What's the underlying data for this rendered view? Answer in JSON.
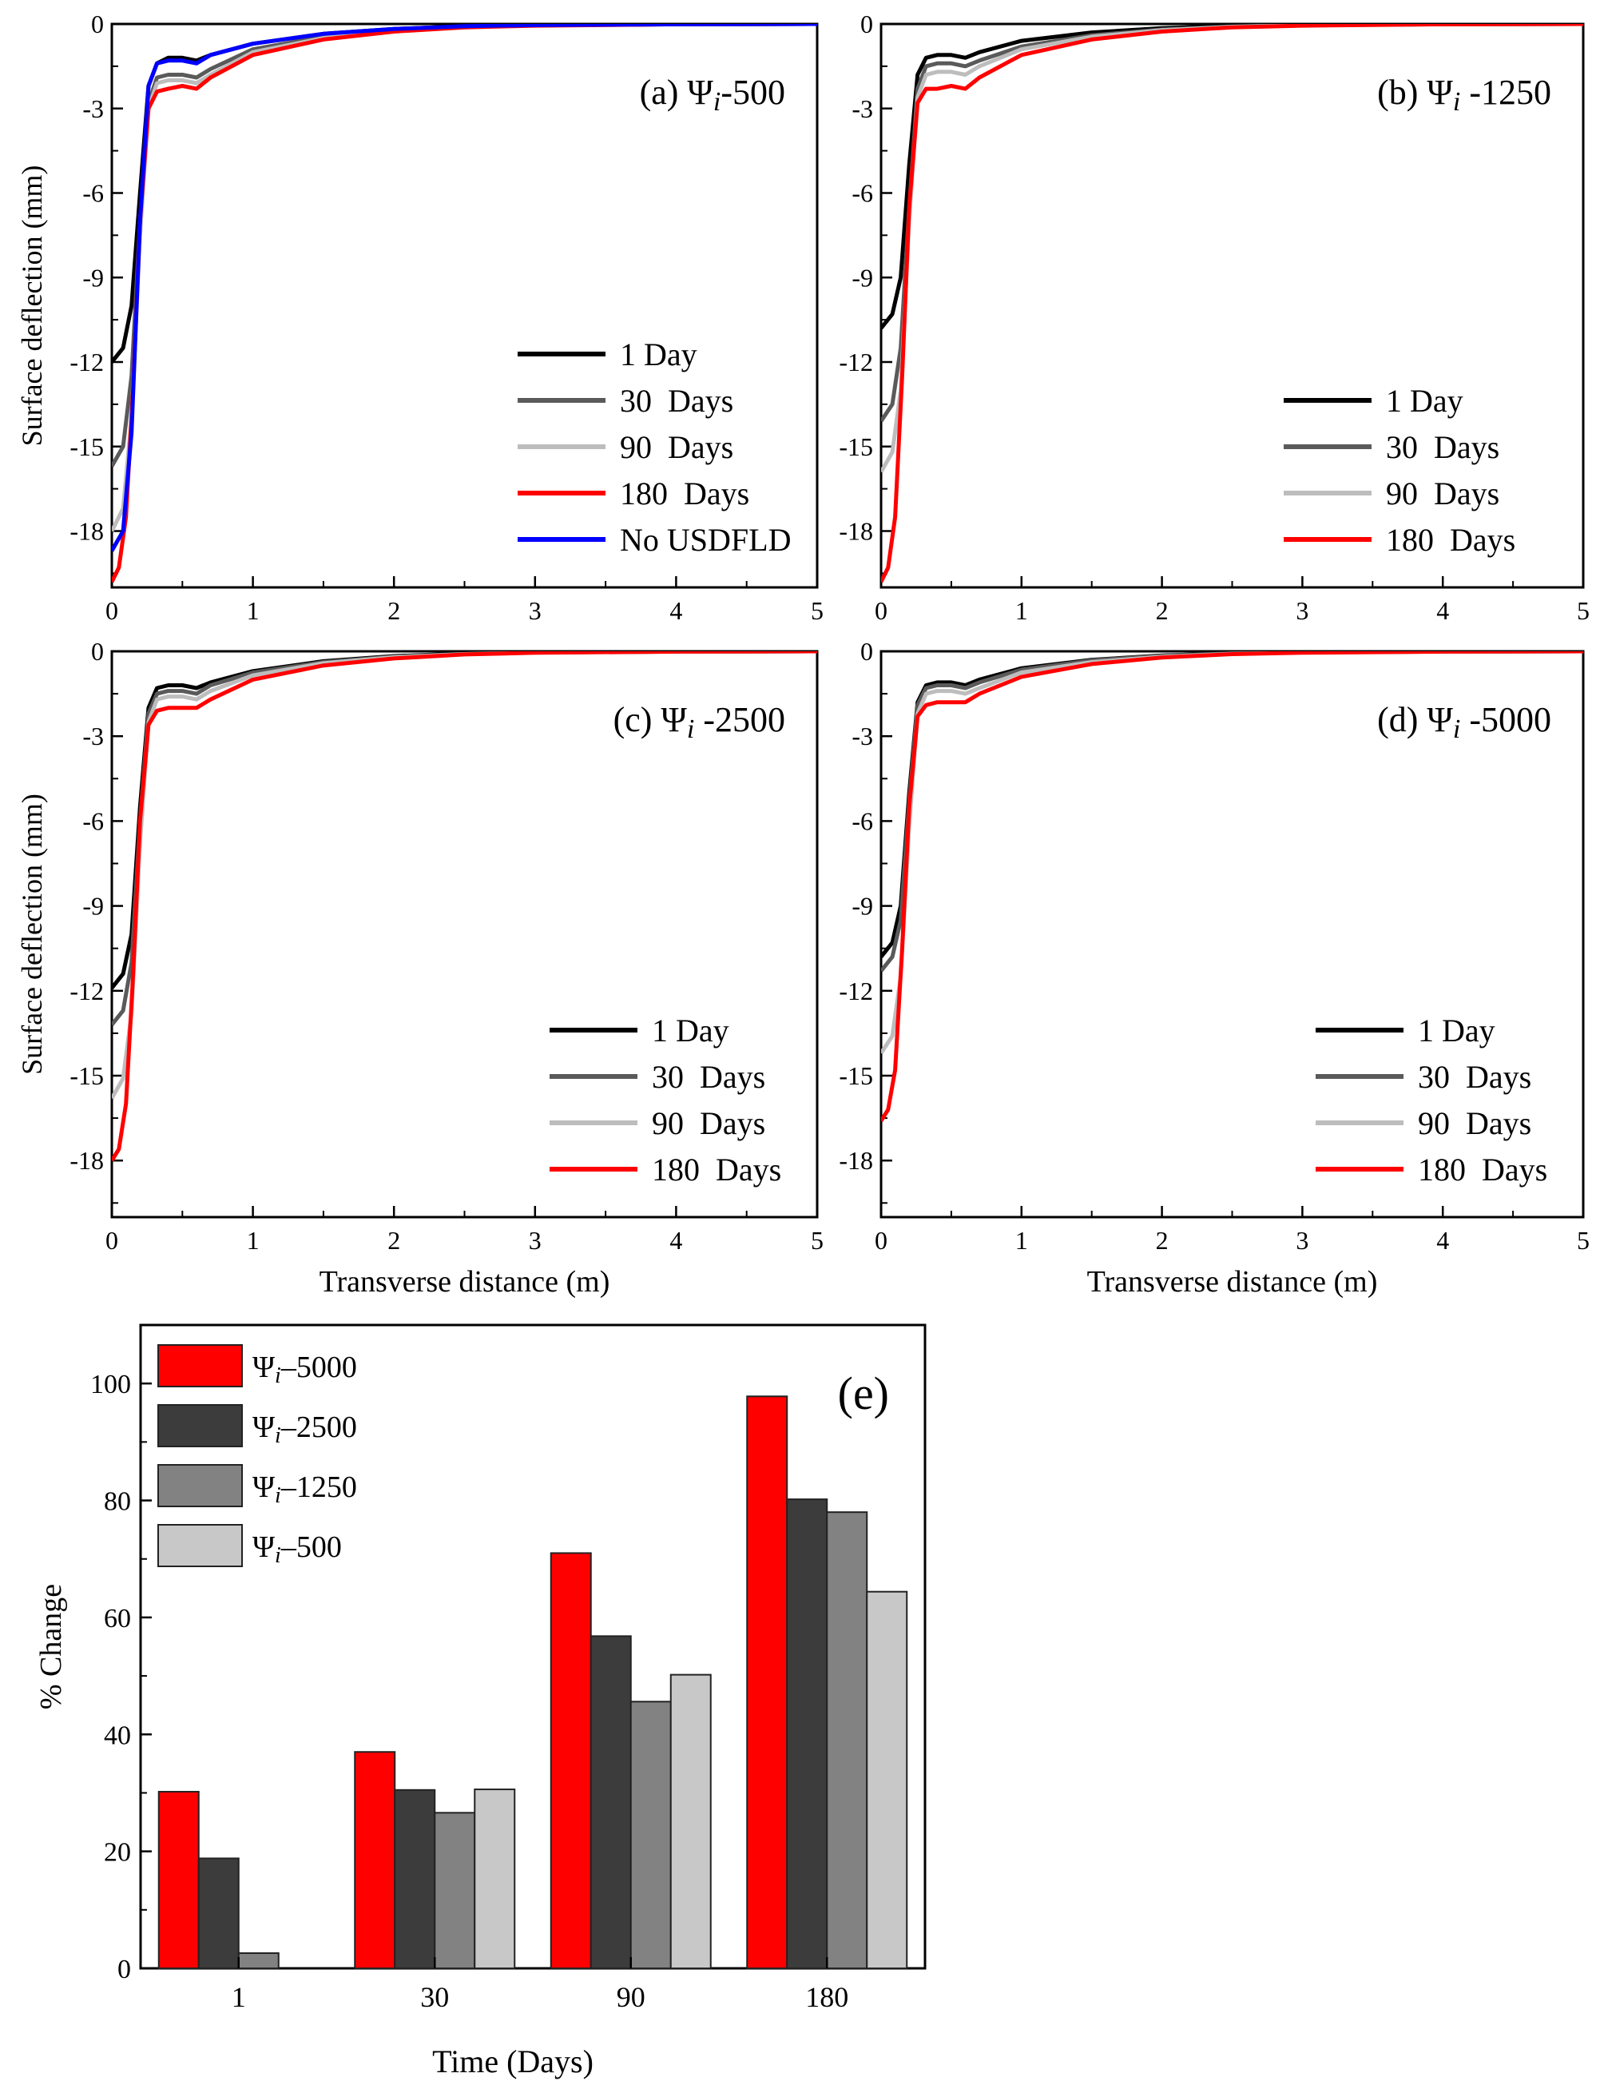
{
  "colors": {
    "black": "#000000",
    "dark_gray": "#5a5a5a",
    "light_gray": "#bdbdbd",
    "red": "#ff0000",
    "blue": "#0000ff",
    "bar_red": "#ff0000",
    "bar_dark": "#3c3c3c",
    "bar_mid": "#828282",
    "bar_light": "#c8c8c8"
  },
  "chart_data": [
    {
      "id": "a",
      "type": "line",
      "label": "(a) Ψ",
      "label_sub": "i",
      "label_value": "-500",
      "ylabel": "Surface deflection (mm)",
      "xlabel": "",
      "xlim": [
        0,
        5
      ],
      "ylim": [
        -20,
        0
      ],
      "xticks": [
        "0",
        "1",
        "2",
        "3",
        "4",
        "5"
      ],
      "yticks": [
        "0",
        "-3",
        "-6",
        "-9",
        "-12",
        "-15",
        "-18"
      ],
      "legend_position": "bottom-right",
      "series": [
        {
          "name": "1 Day",
          "color": "#000000",
          "x": [
            0,
            0.08,
            0.14,
            0.2,
            0.26,
            0.32,
            0.4,
            0.5,
            0.6,
            0.7,
            1.0,
            1.5,
            2.0,
            2.5,
            3.0,
            4.0,
            5.0
          ],
          "y": [
            -12.0,
            -11.5,
            -10.0,
            -6.0,
            -2.2,
            -1.4,
            -1.2,
            -1.2,
            -1.3,
            -1.1,
            -0.7,
            -0.35,
            -0.18,
            -0.08,
            -0.04,
            -0.01,
            0
          ]
        },
        {
          "name": "30  Days",
          "color": "#5a5a5a",
          "x": [
            0,
            0.08,
            0.14,
            0.2,
            0.26,
            0.32,
            0.4,
            0.5,
            0.6,
            0.7,
            1.0,
            1.5,
            2.0,
            2.5,
            3.0,
            4.0,
            5.0
          ],
          "y": [
            -15.7,
            -15.0,
            -12.5,
            -7.0,
            -2.8,
            -1.9,
            -1.8,
            -1.8,
            -1.9,
            -1.6,
            -0.9,
            -0.45,
            -0.22,
            -0.1,
            -0.05,
            -0.01,
            0
          ]
        },
        {
          "name": "90  Days",
          "color": "#bdbdbd",
          "x": [
            0,
            0.08,
            0.14,
            0.2,
            0.26,
            0.32,
            0.4,
            0.5,
            0.6,
            0.7,
            1.0,
            1.5,
            2.0,
            2.5,
            3.0,
            4.0,
            5.0
          ],
          "y": [
            -18.0,
            -17.2,
            -14.0,
            -7.5,
            -3.0,
            -2.1,
            -2.0,
            -2.0,
            -2.1,
            -1.8,
            -1.0,
            -0.5,
            -0.24,
            -0.11,
            -0.05,
            -0.01,
            0
          ]
        },
        {
          "name": "180  Days",
          "color": "#ff0000",
          "x": [
            0,
            0.05,
            0.1,
            0.15,
            0.2,
            0.26,
            0.32,
            0.4,
            0.5,
            0.6,
            0.7,
            1.0,
            1.5,
            2.0,
            2.5,
            3.0,
            4.0,
            5.0
          ],
          "y": [
            -19.8,
            -19.3,
            -17.5,
            -13.0,
            -7.0,
            -3.0,
            -2.4,
            -2.3,
            -2.2,
            -2.3,
            -1.9,
            -1.1,
            -0.55,
            -0.27,
            -0.12,
            -0.06,
            -0.01,
            0
          ]
        },
        {
          "name": "No USDFLD",
          "color": "#0000ff",
          "x": [
            0,
            0.08,
            0.14,
            0.2,
            0.26,
            0.32,
            0.4,
            0.5,
            0.6,
            0.7,
            1.0,
            1.5,
            2.0,
            2.5,
            3.0,
            4.0,
            5.0
          ],
          "y": [
            -18.7,
            -18.0,
            -14.5,
            -7.0,
            -2.2,
            -1.4,
            -1.3,
            -1.3,
            -1.4,
            -1.1,
            -0.7,
            -0.35,
            -0.18,
            -0.08,
            -0.04,
            -0.01,
            0
          ]
        }
      ]
    },
    {
      "id": "b",
      "type": "line",
      "label": "(b) Ψ",
      "label_sub": "i",
      "label_value": " -1250",
      "ylabel": "",
      "xlabel": "",
      "xlim": [
        0,
        5
      ],
      "ylim": [
        -20,
        0
      ],
      "xticks": [
        "0",
        "1",
        "2",
        "3",
        "4",
        "5"
      ],
      "yticks": [
        "0",
        "-3",
        "-6",
        "-9",
        "-12",
        "-15",
        "-18"
      ],
      "legend_position": "bottom-right",
      "series": [
        {
          "name": "1 Day",
          "color": "#000000",
          "x": [
            0,
            0.08,
            0.14,
            0.2,
            0.26,
            0.32,
            0.4,
            0.5,
            0.6,
            0.7,
            1.0,
            1.5,
            2.0,
            2.5,
            3.0,
            4.0,
            5.0
          ],
          "y": [
            -10.8,
            -10.3,
            -9.0,
            -5.0,
            -1.8,
            -1.2,
            -1.1,
            -1.1,
            -1.2,
            -1.0,
            -0.6,
            -0.3,
            -0.15,
            -0.07,
            -0.03,
            -0.01,
            0
          ]
        },
        {
          "name": "30  Days",
          "color": "#5a5a5a",
          "x": [
            0,
            0.08,
            0.14,
            0.2,
            0.26,
            0.32,
            0.4,
            0.5,
            0.6,
            0.7,
            1.0,
            1.5,
            2.0,
            2.5,
            3.0,
            4.0,
            5.0
          ],
          "y": [
            -14.1,
            -13.5,
            -11.5,
            -6.5,
            -2.3,
            -1.5,
            -1.4,
            -1.4,
            -1.5,
            -1.3,
            -0.8,
            -0.4,
            -0.2,
            -0.09,
            -0.04,
            -0.01,
            0
          ]
        },
        {
          "name": "90  Days",
          "color": "#bdbdbd",
          "x": [
            0,
            0.08,
            0.14,
            0.2,
            0.26,
            0.32,
            0.4,
            0.5,
            0.6,
            0.7,
            1.0,
            1.5,
            2.0,
            2.5,
            3.0,
            4.0,
            5.0
          ],
          "y": [
            -15.9,
            -15.2,
            -13.0,
            -7.0,
            -2.6,
            -1.8,
            -1.7,
            -1.7,
            -1.8,
            -1.5,
            -0.9,
            -0.45,
            -0.22,
            -0.1,
            -0.05,
            -0.01,
            0
          ]
        },
        {
          "name": "180  Days",
          "color": "#ff0000",
          "x": [
            0,
            0.05,
            0.1,
            0.15,
            0.2,
            0.26,
            0.32,
            0.4,
            0.5,
            0.6,
            0.7,
            1.0,
            1.5,
            2.0,
            2.5,
            3.0,
            4.0,
            5.0
          ],
          "y": [
            -19.8,
            -19.3,
            -17.5,
            -12.5,
            -6.5,
            -2.8,
            -2.3,
            -2.3,
            -2.2,
            -2.3,
            -1.9,
            -1.1,
            -0.55,
            -0.27,
            -0.12,
            -0.06,
            -0.01,
            0
          ]
        }
      ]
    },
    {
      "id": "c",
      "type": "line",
      "label": "(c) Ψ",
      "label_sub": "i",
      "label_value": " -2500",
      "ylabel": "Surface deflection (mm)",
      "xlabel": "Transverse distance (m)",
      "xlim": [
        0,
        5
      ],
      "ylim": [
        -20,
        0
      ],
      "xticks": [
        "0",
        "1",
        "2",
        "3",
        "4",
        "5"
      ],
      "yticks": [
        "0",
        "-3",
        "-6",
        "-9",
        "-12",
        "-15",
        "-18"
      ],
      "legend_position": "bottom-right",
      "series": [
        {
          "name": "1 Day",
          "color": "#000000",
          "x": [
            0,
            0.08,
            0.14,
            0.2,
            0.26,
            0.32,
            0.4,
            0.5,
            0.6,
            0.7,
            1.0,
            1.5,
            2.0,
            2.5,
            3.0,
            4.0,
            5.0
          ],
          "y": [
            -11.9,
            -11.4,
            -10.0,
            -5.5,
            -2.0,
            -1.3,
            -1.2,
            -1.2,
            -1.3,
            -1.1,
            -0.7,
            -0.35,
            -0.17,
            -0.08,
            -0.04,
            -0.01,
            0
          ]
        },
        {
          "name": "30  Days",
          "color": "#5a5a5a",
          "x": [
            0,
            0.08,
            0.14,
            0.2,
            0.26,
            0.32,
            0.4,
            0.5,
            0.6,
            0.7,
            1.0,
            1.5,
            2.0,
            2.5,
            3.0,
            4.0,
            5.0
          ],
          "y": [
            -13.2,
            -12.7,
            -11.0,
            -6.0,
            -2.2,
            -1.5,
            -1.4,
            -1.4,
            -1.5,
            -1.2,
            -0.75,
            -0.38,
            -0.19,
            -0.09,
            -0.04,
            -0.01,
            0
          ]
        },
        {
          "name": "90  Days",
          "color": "#bdbdbd",
          "x": [
            0,
            0.08,
            0.14,
            0.2,
            0.26,
            0.32,
            0.4,
            0.5,
            0.6,
            0.7,
            1.0,
            1.5,
            2.0,
            2.5,
            3.0,
            4.0,
            5.0
          ],
          "y": [
            -15.8,
            -15.1,
            -12.8,
            -6.8,
            -2.5,
            -1.7,
            -1.6,
            -1.6,
            -1.7,
            -1.4,
            -0.85,
            -0.42,
            -0.21,
            -0.1,
            -0.05,
            -0.01,
            0
          ]
        },
        {
          "name": "180  Days",
          "color": "#ff0000",
          "x": [
            0,
            0.05,
            0.1,
            0.15,
            0.2,
            0.26,
            0.32,
            0.4,
            0.5,
            0.6,
            0.7,
            1.0,
            1.5,
            2.0,
            2.5,
            3.0,
            4.0,
            5.0
          ],
          "y": [
            -18.0,
            -17.6,
            -16.0,
            -11.5,
            -6.0,
            -2.6,
            -2.1,
            -2.0,
            -2.0,
            -2.0,
            -1.7,
            -1.0,
            -0.5,
            -0.25,
            -0.11,
            -0.05,
            -0.01,
            0
          ]
        }
      ]
    },
    {
      "id": "d",
      "type": "line",
      "label": "(d) Ψ",
      "label_sub": "i",
      "label_value": " -5000",
      "ylabel": "",
      "xlabel": "Transverse distance (m)",
      "xlim": [
        0,
        5
      ],
      "ylim": [
        -20,
        0
      ],
      "xticks": [
        "0",
        "1",
        "2",
        "3",
        "4",
        "5"
      ],
      "yticks": [
        "0",
        "-3",
        "-6",
        "-9",
        "-12",
        "-15",
        "-18"
      ],
      "legend_position": "bottom-right",
      "series": [
        {
          "name": "1 Day",
          "color": "#000000",
          "x": [
            0,
            0.08,
            0.14,
            0.2,
            0.26,
            0.32,
            0.4,
            0.5,
            0.6,
            0.7,
            1.0,
            1.5,
            2.0,
            2.5,
            3.0,
            4.0,
            5.0
          ],
          "y": [
            -10.8,
            -10.3,
            -9.0,
            -5.0,
            -1.8,
            -1.2,
            -1.1,
            -1.1,
            -1.2,
            -1.0,
            -0.6,
            -0.3,
            -0.15,
            -0.07,
            -0.03,
            -0.01,
            0
          ]
        },
        {
          "name": "30  Days",
          "color": "#5a5a5a",
          "x": [
            0,
            0.08,
            0.14,
            0.2,
            0.26,
            0.32,
            0.4,
            0.5,
            0.6,
            0.7,
            1.0,
            1.5,
            2.0,
            2.5,
            3.0,
            4.0,
            5.0
          ],
          "y": [
            -11.3,
            -10.8,
            -9.5,
            -5.3,
            -1.9,
            -1.3,
            -1.2,
            -1.2,
            -1.3,
            -1.1,
            -0.65,
            -0.32,
            -0.16,
            -0.07,
            -0.03,
            -0.01,
            0
          ]
        },
        {
          "name": "90  Days",
          "color": "#bdbdbd",
          "x": [
            0,
            0.08,
            0.14,
            0.2,
            0.26,
            0.32,
            0.4,
            0.5,
            0.6,
            0.7,
            1.0,
            1.5,
            2.0,
            2.5,
            3.0,
            4.0,
            5.0
          ],
          "y": [
            -14.2,
            -13.6,
            -11.5,
            -6.2,
            -2.2,
            -1.5,
            -1.4,
            -1.4,
            -1.5,
            -1.3,
            -0.75,
            -0.38,
            -0.19,
            -0.09,
            -0.04,
            -0.01,
            0
          ]
        },
        {
          "name": "180  Days",
          "color": "#ff0000",
          "x": [
            0,
            0.05,
            0.1,
            0.15,
            0.2,
            0.26,
            0.32,
            0.4,
            0.5,
            0.6,
            0.7,
            1.0,
            1.5,
            2.0,
            2.5,
            3.0,
            4.0,
            5.0
          ],
          "y": [
            -16.6,
            -16.2,
            -14.8,
            -10.5,
            -5.5,
            -2.3,
            -1.9,
            -1.8,
            -1.8,
            -1.8,
            -1.5,
            -0.9,
            -0.45,
            -0.22,
            -0.1,
            -0.05,
            -0.01,
            0
          ]
        }
      ]
    },
    {
      "id": "e",
      "type": "bar",
      "label": "(e)",
      "ylabel": "% Change",
      "xlabel": "Time (Days)",
      "categories": [
        "1",
        "30",
        "90",
        "180"
      ],
      "ylim": [
        0,
        110
      ],
      "yticks": [
        "0",
        "20",
        "40",
        "60",
        "80",
        "100"
      ],
      "legend_position": "top-left",
      "series": [
        {
          "name": "Ψ",
          "name_sub": "i",
          "name_value": "–5000",
          "color": "#ff0000",
          "values": [
            30.2,
            37.0,
            71.0,
            97.8
          ]
        },
        {
          "name": "Ψ",
          "name_sub": "i",
          "name_value": "–2500",
          "color": "#3c3c3c",
          "values": [
            18.8,
            30.5,
            56.8,
            80.2
          ]
        },
        {
          "name": "Ψ",
          "name_sub": "i",
          "name_value": "–1250",
          "color": "#828282",
          "values": [
            2.6,
            26.6,
            45.6,
            78.0
          ]
        },
        {
          "name": "Ψ",
          "name_sub": "i",
          "name_value": "–500",
          "color": "#c8c8c8",
          "values": [
            0,
            30.6,
            50.2,
            64.4
          ]
        }
      ]
    }
  ]
}
